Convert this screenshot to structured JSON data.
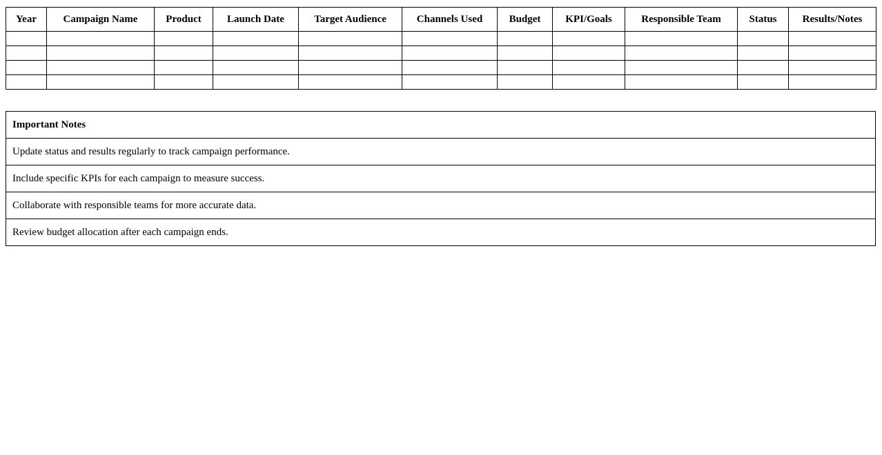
{
  "campaign_table": {
    "columns": [
      "Year",
      "Campaign Name",
      "Product",
      "Launch Date",
      "Target Audience",
      "Channels Used",
      "Budget",
      "KPI/Goals",
      "Responsible Team",
      "Status",
      "Results/Notes"
    ],
    "rows": [
      [
        "",
        "",
        "",
        "",
        "",
        "",
        "",
        "",
        "",
        "",
        ""
      ],
      [
        "",
        "",
        "",
        "",
        "",
        "",
        "",
        "",
        "",
        "",
        ""
      ],
      [
        "",
        "",
        "",
        "",
        "",
        "",
        "",
        "",
        "",
        "",
        ""
      ],
      [
        "",
        "",
        "",
        "",
        "",
        "",
        "",
        "",
        "",
        "",
        ""
      ]
    ]
  },
  "notes_table": {
    "header": "Important Notes",
    "notes": [
      "Update status and results regularly to track campaign performance.",
      "Include specific KPIs for each campaign to measure success.",
      "Collaborate with responsible teams for more accurate data.",
      "Review budget allocation after each campaign ends."
    ]
  },
  "colors": {
    "background": "#ffffff",
    "border": "#000000",
    "text": "#000000"
  }
}
